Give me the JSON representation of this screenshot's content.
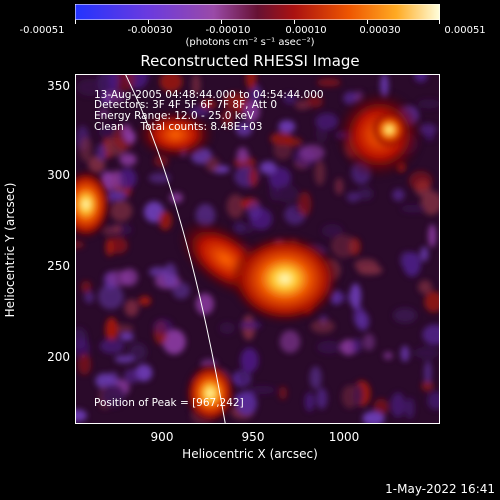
{
  "colorbar": {
    "tick_labels": [
      "-0.00051",
      "-0.00030",
      "-0.00010",
      "0.00010",
      "0.00030",
      "0.00051"
    ],
    "units": "(photons cm⁻² s⁻¹ asec⁻²)",
    "colors": [
      "#1a1aff",
      "#8844ff",
      "#bb55aa",
      "#cc2222",
      "#ee6600",
      "#ffcc44",
      "#ffffcc"
    ]
  },
  "title": "Reconstructed RHESSI Image",
  "annotations": {
    "time": "13-Aug-2005 04:48:44.000 to 04:54:44.000",
    "detectors": "Detectors: 3F 4F 5F 6F 7F 8F, Att 0",
    "energy": "Energy Range: 12.0 - 25.0 keV",
    "clean": "Clean     Total counts: 8.48E+03",
    "peak": "Position of Peak = [967,242]"
  },
  "axes": {
    "x_title": "Heliocentric X (arcsec)",
    "y_title": "Heliocentric Y (arcsec)",
    "x_ticks": [
      "900",
      "950",
      "1000"
    ],
    "y_ticks": [
      "350",
      "300",
      "250",
      "200"
    ]
  },
  "footer": {
    "date": "1-May-2022 16:41"
  }
}
